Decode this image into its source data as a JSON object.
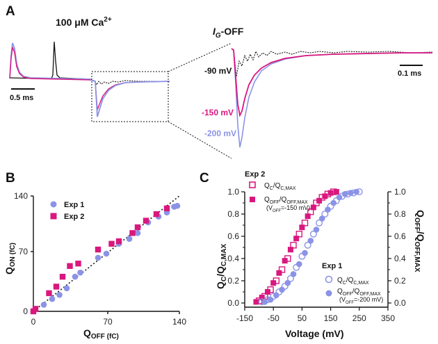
{
  "colors": {
    "ca": "#8b93e6",
    "mg": "#d9177e",
    "dark": "#111111"
  },
  "panel_a": {
    "label": "A",
    "condition": "100 μM Ca",
    "condition_sup": "2+",
    "inset_title_i": "I",
    "inset_title_sub": "G",
    "inset_title_rest": "-OFF",
    "scale_left": "0.5 ms",
    "scale_right": "0.1 ms",
    "trace_labels": [
      "-90 mV",
      "-150 mV",
      "-200 mV"
    ]
  },
  "panel_b": {
    "label": "B",
    "ylabel_main": "Q",
    "ylabel_sub": "ON (fC)",
    "xlabel_main": "Q",
    "xlabel_sub": "OFF (fC)",
    "ticks": [
      "0",
      "70",
      "140"
    ],
    "legend": [
      "Exp 1",
      "Exp 2"
    ]
  },
  "panel_c": {
    "label": "C",
    "exp2_title": "Exp 2",
    "exp1_title": "Exp 1",
    "legend_exp2": [
      {
        "main": "Q",
        "sub": "C",
        "mid": "/Q",
        "sub2": "C,MAX",
        "note": ""
      },
      {
        "main": "Q",
        "sub": "OFF",
        "mid": "/Q",
        "sub2": "OFF,MAX",
        "note": "(V",
        "note_sub": "OFF",
        "note_end": "=-150 mV)"
      }
    ],
    "legend_exp1": [
      {
        "main": "Q",
        "sub": "C",
        "mid": "/Q",
        "sub2": "C,MAX",
        "note": ""
      },
      {
        "main": "Q",
        "sub": "OFF",
        "mid": "/Q",
        "sub2": "OFF,MAX",
        "note": "(V",
        "note_sub": "OFF",
        "note_end": "=-200 mV)"
      }
    ],
    "ylabel_left_main": "Q",
    "ylabel_left_sub": "C",
    "ylabel_left_mid": "/Q",
    "ylabel_left_sub2": "C,MAX",
    "ylabel_right_main": "Q",
    "ylabel_right_sub": "OFF",
    "ylabel_right_mid": "/Q",
    "ylabel_right_sub2": "OFF,MAX",
    "xlabel": "Voltage (mV)",
    "xticks": [
      "-150",
      "-50",
      "50",
      "150",
      "250",
      "350"
    ],
    "yticks": [
      "0.0",
      "0.2",
      "0.4",
      "0.6",
      "0.8",
      "1.0"
    ]
  },
  "chart_data": [
    {
      "type": "scatter",
      "panel": "B",
      "xlabel": "QOFF (fC)",
      "ylabel": "QON (fC)",
      "xlim": [
        0,
        140
      ],
      "ylim": [
        0,
        140
      ],
      "reference_line": "identity (dotted)",
      "series": [
        {
          "name": "Exp 1",
          "marker": "circle",
          "x": [
            0,
            10,
            18,
            25,
            32,
            40,
            45,
            62,
            70,
            82,
            92,
            100,
            110,
            120,
            128,
            135,
            138
          ],
          "y": [
            0,
            8,
            15,
            20,
            28,
            42,
            47,
            65,
            70,
            82,
            88,
            95,
            108,
            115,
            120,
            127,
            128
          ]
        },
        {
          "name": "Exp 2",
          "marker": "square",
          "x": [
            0,
            2,
            15,
            22,
            28,
            35,
            43,
            62,
            75,
            82,
            95,
            100,
            108,
            118,
            128
          ],
          "y": [
            0,
            3,
            22,
            30,
            42,
            55,
            58,
            75,
            82,
            85,
            95,
            102,
            110,
            118,
            125
          ]
        }
      ]
    },
    {
      "type": "scatter",
      "panel": "C",
      "xlabel": "Voltage (mV)",
      "ylabel": "QC/QC,MAX",
      "ylabel_right": "QOFF/QOFF,MAX",
      "xlim": [
        -150,
        350
      ],
      "ylim": [
        0,
        1.0
      ],
      "series": [
        {
          "name": "QC/QC,MAX (Exp 2)",
          "marker": "open-square",
          "x": [
            -100,
            -80,
            -60,
            -40,
            -20,
            0,
            20,
            40,
            60,
            80,
            100,
            120,
            140,
            160
          ],
          "y": [
            0.02,
            0.06,
            0.12,
            0.2,
            0.3,
            0.4,
            0.52,
            0.62,
            0.72,
            0.82,
            0.9,
            0.95,
            0.98,
            1.0
          ]
        },
        {
          "name": "QOFF/QOFF,MAX (VOFF=-150 mV)",
          "marker": "filled-square",
          "x": [
            -110,
            -90,
            -70,
            -50,
            -30,
            -10,
            10,
            30,
            50,
            70,
            90,
            110,
            130,
            150,
            170
          ],
          "y": [
            0.01,
            0.05,
            0.1,
            0.18,
            0.27,
            0.38,
            0.48,
            0.58,
            0.68,
            0.78,
            0.86,
            0.92,
            0.96,
            0.99,
            1.0
          ]
        },
        {
          "name": "QC/QC,MAX (Exp 1)",
          "marker": "open-circle",
          "x": [
            -90,
            -70,
            -50,
            -30,
            -10,
            10,
            30,
            50,
            70,
            90,
            110,
            130,
            150,
            170,
            190,
            210,
            230,
            250
          ],
          "y": [
            0.01,
            0.03,
            0.06,
            0.1,
            0.15,
            0.22,
            0.32,
            0.42,
            0.52,
            0.62,
            0.72,
            0.8,
            0.87,
            0.92,
            0.96,
            0.98,
            0.99,
            1.0
          ]
        },
        {
          "name": "QOFF/QOFF,MAX (VOFF=-200 mV)",
          "marker": "filled-circle",
          "x": [
            -80,
            -60,
            -40,
            -20,
            0,
            20,
            40,
            60,
            80,
            100,
            120,
            140,
            160,
            180,
            200,
            220,
            240
          ],
          "y": [
            0.01,
            0.03,
            0.07,
            0.12,
            0.18,
            0.26,
            0.35,
            0.45,
            0.56,
            0.66,
            0.76,
            0.84,
            0.9,
            0.95,
            0.98,
            0.99,
            1.0
          ]
        }
      ]
    }
  ]
}
